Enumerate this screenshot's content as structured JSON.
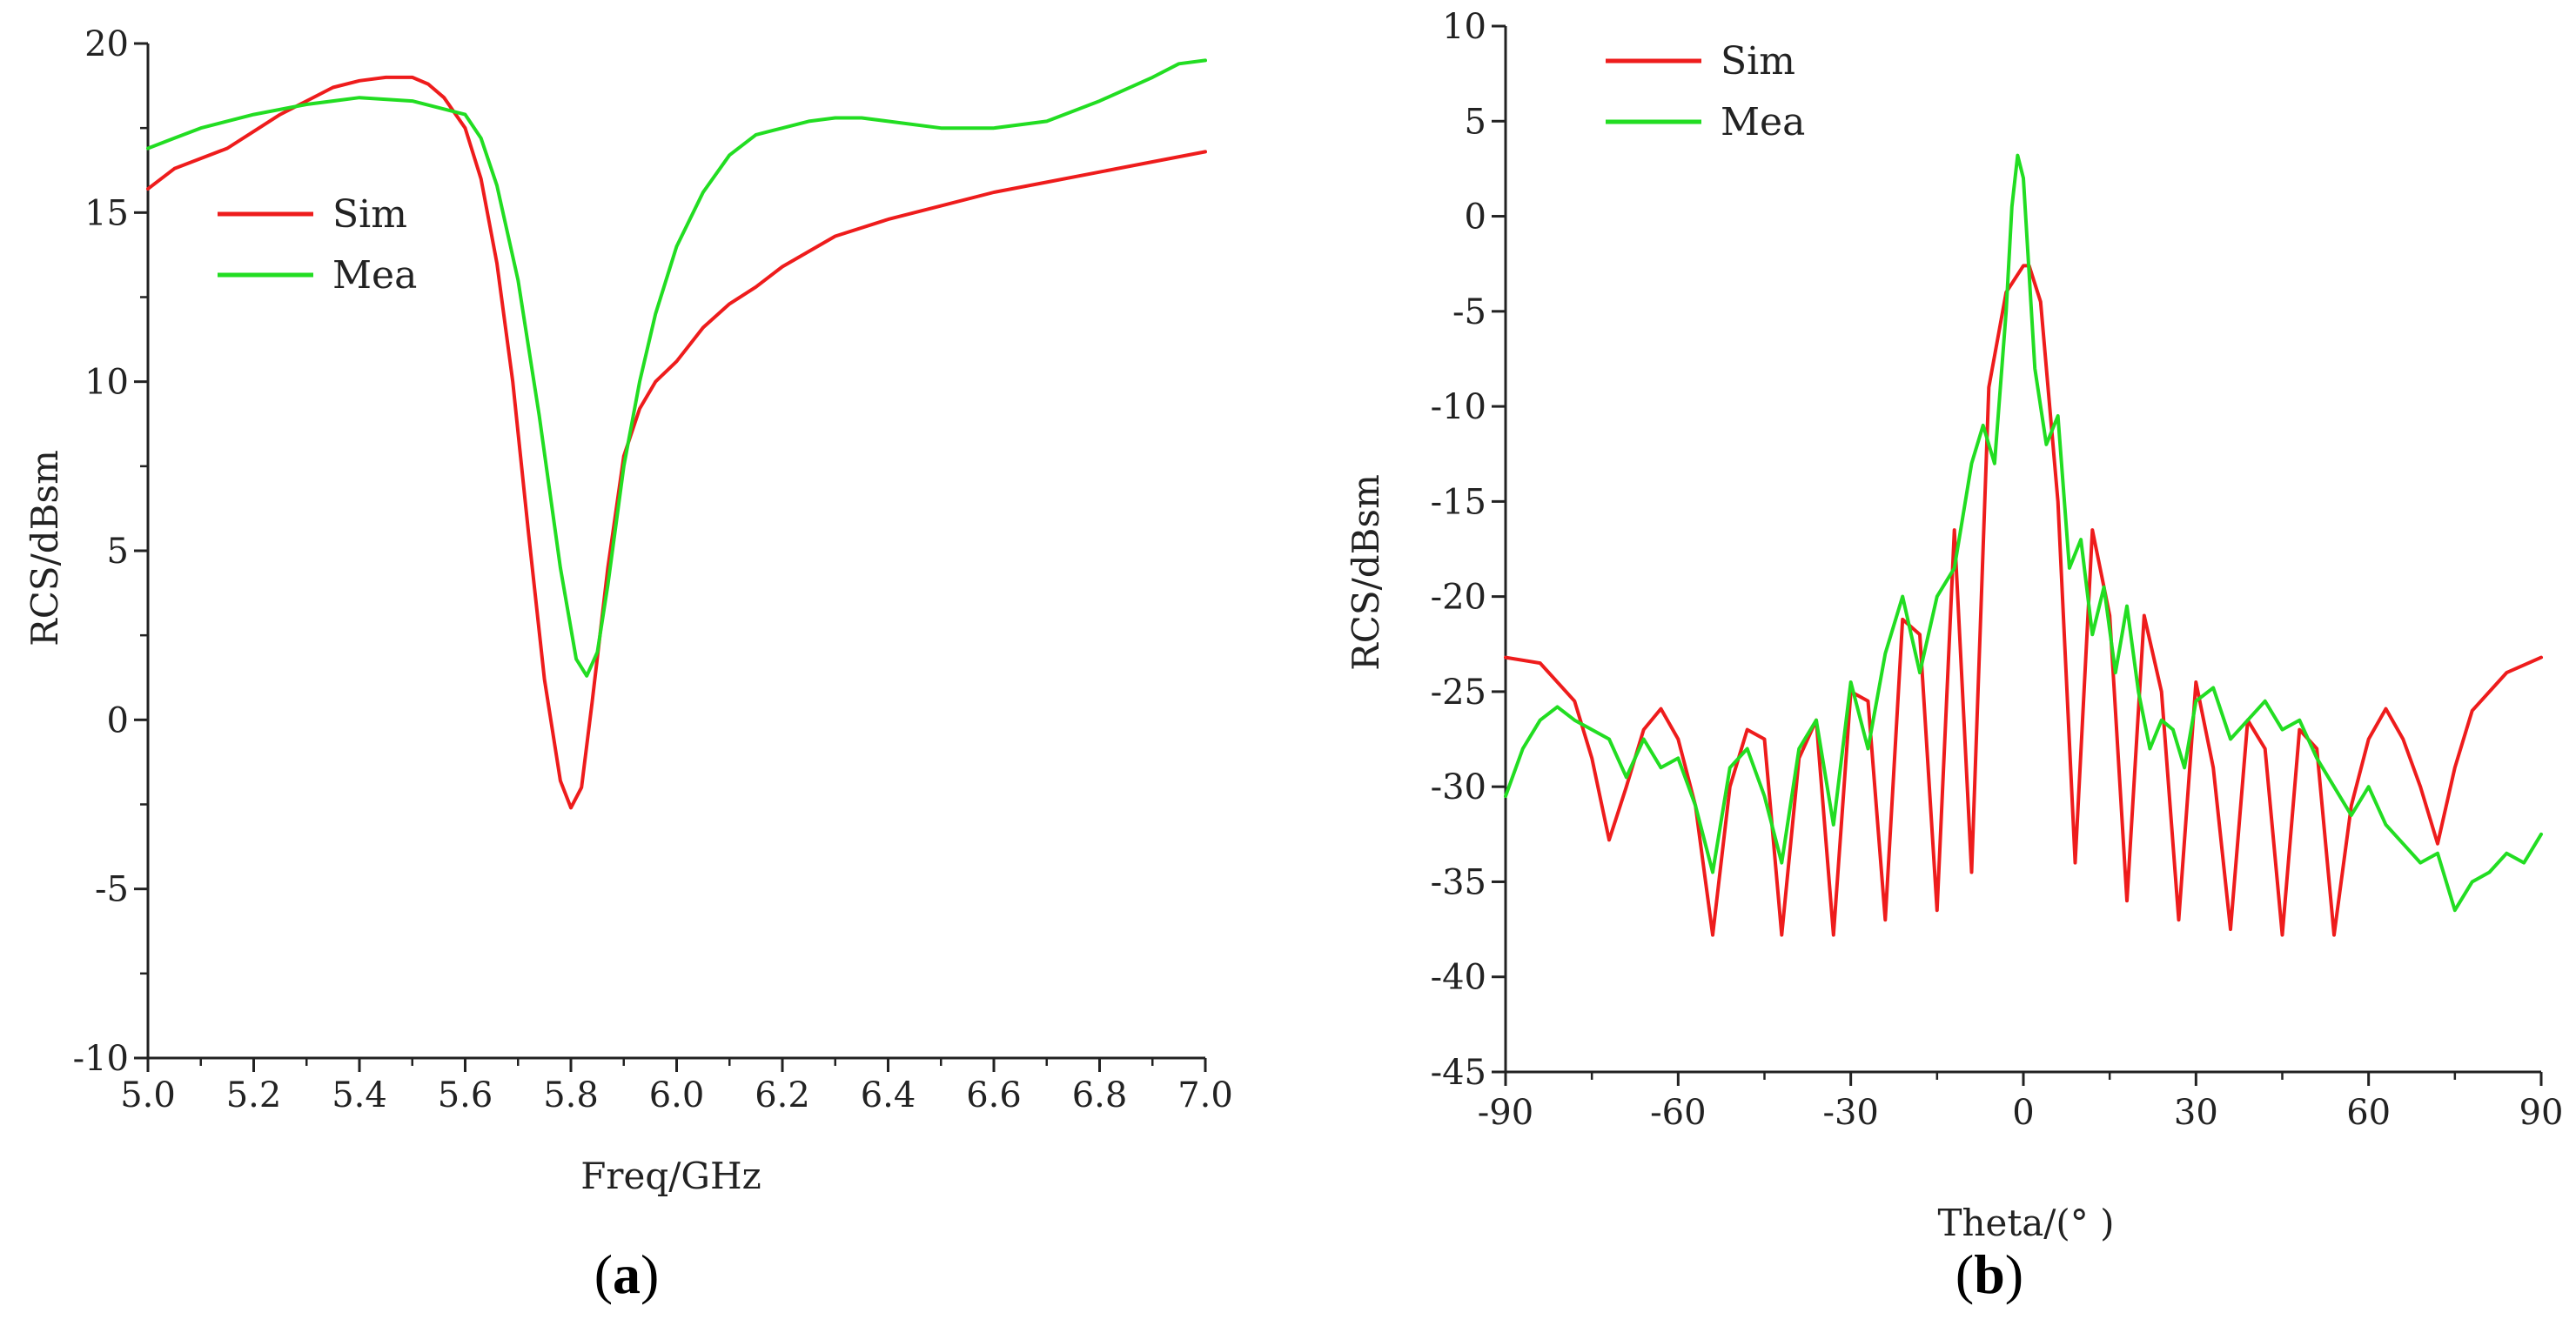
{
  "chart_data": [
    {
      "type": "line",
      "panel_label": {
        "open": "(",
        "letter": "a",
        "close": ")"
      },
      "xlabel": "Freq/GHz",
      "ylabel": "RCS/dBsm",
      "xlim": [
        5.0,
        7.0
      ],
      "ylim": [
        -10,
        20
      ],
      "xticks": [
        5.0,
        5.2,
        5.4,
        5.6,
        5.8,
        6.0,
        6.2,
        6.4,
        6.6,
        6.8,
        7.0
      ],
      "xtick_labels": [
        "5.0",
        "5.2",
        "5.4",
        "5.6",
        "5.8",
        "6.0",
        "6.2",
        "6.4",
        "6.6",
        "6.8",
        "7.0"
      ],
      "yticks": [
        -10,
        -5,
        0,
        5,
        10,
        15,
        20
      ],
      "ytick_labels": [
        "-10",
        "-5",
        "0",
        "5",
        "10",
        "15",
        "20"
      ],
      "legend_position": "upper-left",
      "series": [
        {
          "name": "Sim",
          "color": "#ee1c1c",
          "x": [
            5.0,
            5.05,
            5.1,
            5.15,
            5.2,
            5.25,
            5.3,
            5.35,
            5.4,
            5.45,
            5.5,
            5.53,
            5.56,
            5.6,
            5.63,
            5.66,
            5.69,
            5.72,
            5.75,
            5.78,
            5.8,
            5.82,
            5.84,
            5.87,
            5.9,
            5.93,
            5.96,
            6.0,
            6.05,
            6.1,
            6.15,
            6.2,
            6.3,
            6.4,
            6.5,
            6.6,
            6.7,
            6.8,
            6.9,
            7.0
          ],
          "y": [
            15.7,
            16.3,
            16.6,
            16.9,
            17.4,
            17.9,
            18.3,
            18.7,
            18.9,
            19.0,
            19.0,
            18.8,
            18.4,
            17.5,
            16.0,
            13.5,
            10.0,
            5.5,
            1.2,
            -1.8,
            -2.6,
            -2.0,
            0.5,
            4.5,
            7.8,
            9.2,
            10.0,
            10.6,
            11.6,
            12.3,
            12.8,
            13.4,
            14.3,
            14.8,
            15.2,
            15.6,
            15.9,
            16.2,
            16.5,
            16.8
          ]
        },
        {
          "name": "Mea",
          "color": "#22dd22",
          "x": [
            5.0,
            5.05,
            5.1,
            5.2,
            5.3,
            5.4,
            5.5,
            5.55,
            5.6,
            5.63,
            5.66,
            5.7,
            5.74,
            5.78,
            5.81,
            5.83,
            5.85,
            5.87,
            5.9,
            5.93,
            5.96,
            6.0,
            6.05,
            6.1,
            6.15,
            6.2,
            6.25,
            6.3,
            6.35,
            6.4,
            6.5,
            6.6,
            6.7,
            6.8,
            6.9,
            6.95,
            7.0
          ],
          "y": [
            16.9,
            17.2,
            17.5,
            17.9,
            18.2,
            18.4,
            18.3,
            18.1,
            17.9,
            17.2,
            15.8,
            13.0,
            9.0,
            4.5,
            1.8,
            1.3,
            2.0,
            4.0,
            7.5,
            10.0,
            12.0,
            14.0,
            15.6,
            16.7,
            17.3,
            17.5,
            17.7,
            17.8,
            17.8,
            17.7,
            17.5,
            17.5,
            17.7,
            18.3,
            19.0,
            19.4,
            19.5
          ]
        }
      ]
    },
    {
      "type": "line",
      "panel_label": {
        "open": "(",
        "letter": "b",
        "close": ")"
      },
      "xlabel": "Theta/(° )",
      "ylabel": "RCS/dBsm",
      "xlim": [
        -90,
        90
      ],
      "ylim": [
        -45,
        10
      ],
      "xticks": [
        -90,
        -60,
        -30,
        0,
        30,
        60,
        90
      ],
      "xtick_labels": [
        "-90",
        "-60",
        "-30",
        "0",
        "30",
        "60",
        "90"
      ],
      "yticks": [
        -45,
        -40,
        -35,
        -30,
        -25,
        -20,
        -15,
        -10,
        -5,
        0,
        5,
        10
      ],
      "ytick_labels": [
        "-45",
        "-40",
        "-35",
        "-30",
        "-25",
        "-20",
        "-15",
        "-10",
        "-5",
        "0",
        "5",
        "10"
      ],
      "legend_position": "upper-left",
      "series": [
        {
          "name": "Sim",
          "color": "#ee1c1c",
          "x": [
            -90,
            -84,
            -78,
            -75,
            -72,
            -69,
            -66,
            -63,
            -60,
            -57,
            -54,
            -51,
            -48,
            -45,
            -42,
            -39,
            -36,
            -33,
            -30,
            -27,
            -24,
            -21,
            -18,
            -15,
            -12,
            -9,
            -6,
            -3,
            0,
            1,
            3,
            6,
            9,
            12,
            15,
            18,
            21,
            24,
            27,
            30,
            33,
            36,
            39,
            42,
            45,
            48,
            51,
            54,
            57,
            60,
            63,
            66,
            69,
            72,
            75,
            78,
            84,
            90
          ],
          "y": [
            -23.2,
            -23.5,
            -25.5,
            -28.5,
            -32.8,
            -30.0,
            -27.0,
            -25.9,
            -27.5,
            -31.0,
            -37.8,
            -30.0,
            -27.0,
            -27.5,
            -37.8,
            -28.5,
            -26.5,
            -37.8,
            -25.0,
            -25.5,
            -37.0,
            -21.2,
            -22.0,
            -36.5,
            -16.5,
            -34.5,
            -9.0,
            -4.0,
            -2.6,
            -2.6,
            -4.5,
            -15.0,
            -34.0,
            -16.5,
            -21.0,
            -36.0,
            -21.0,
            -25.0,
            -37.0,
            -24.5,
            -29.0,
            -37.5,
            -26.5,
            -28.0,
            -37.8,
            -27.0,
            -28.0,
            -37.8,
            -31.0,
            -27.5,
            -25.9,
            -27.5,
            -30.0,
            -33.0,
            -29.0,
            -26.0,
            -24.0,
            -23.2
          ]
        },
        {
          "name": "Mea",
          "color": "#22dd22",
          "x": [
            -90,
            -87,
            -84,
            -81,
            -78,
            -75,
            -72,
            -69,
            -66,
            -63,
            -60,
            -57,
            -54,
            -51,
            -48,
            -45,
            -42,
            -39,
            -36,
            -33,
            -30,
            -27,
            -24,
            -21,
            -18,
            -15,
            -12,
            -9,
            -7,
            -5,
            -3,
            -2,
            -1,
            0,
            2,
            4,
            6,
            8,
            10,
            12,
            14,
            16,
            18,
            20,
            22,
            24,
            26,
            28,
            30,
            33,
            36,
            39,
            42,
            45,
            48,
            51,
            54,
            57,
            60,
            63,
            66,
            69,
            72,
            75,
            78,
            81,
            84,
            87,
            90
          ],
          "y": [
            -30.5,
            -28.0,
            -26.5,
            -25.8,
            -26.5,
            -27.0,
            -27.5,
            -29.5,
            -27.5,
            -29.0,
            -28.5,
            -31.0,
            -34.5,
            -29.0,
            -28.0,
            -30.5,
            -34.0,
            -28.0,
            -26.5,
            -32.0,
            -24.5,
            -28.0,
            -23.0,
            -20.0,
            -24.0,
            -20.0,
            -18.5,
            -13.0,
            -11.0,
            -13.0,
            -5.0,
            0.5,
            3.2,
            2.0,
            -8.0,
            -12.0,
            -10.5,
            -18.5,
            -17.0,
            -22.0,
            -19.5,
            -24.0,
            -20.5,
            -25.0,
            -28.0,
            -26.5,
            -27.0,
            -29.0,
            -25.5,
            -24.8,
            -27.5,
            -26.5,
            -25.5,
            -27.0,
            -26.5,
            -28.5,
            -30.0,
            -31.5,
            -30.0,
            -32.0,
            -33.0,
            -34.0,
            -33.5,
            -36.5,
            -35.0,
            -34.5,
            -33.5,
            -34.0,
            -32.5
          ]
        }
      ]
    }
  ]
}
